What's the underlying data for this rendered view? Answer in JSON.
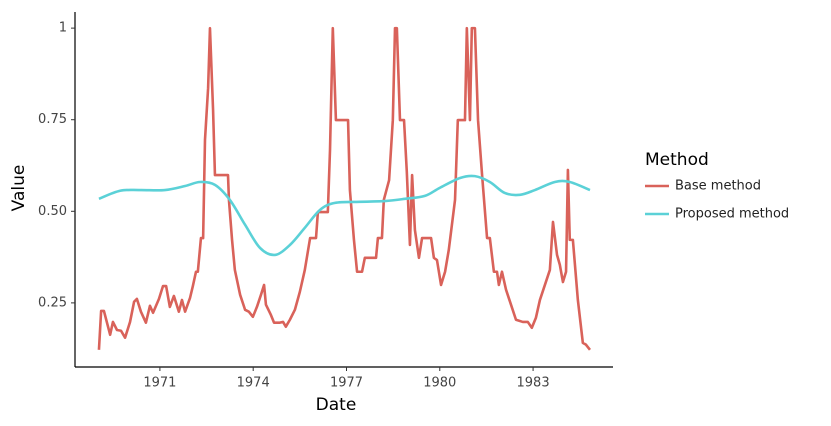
{
  "chart_data": {
    "type": "line",
    "xlabel": "Date",
    "ylabel": "Value",
    "legend_title": "Method",
    "legend_position": "right",
    "xlim": [
      1968.27,
      1985.57
    ],
    "ylim": [
      0.075,
      1.044
    ],
    "xticks": [
      1971,
      1974,
      1977,
      1980,
      1983
    ],
    "yticks": [
      0.25,
      {
        "value": 0.5,
        "label": "0.50"
      },
      0.75,
      1
    ],
    "grid": false,
    "series": [
      {
        "name": "Base method",
        "color": "#d9625a",
        "smooth": false,
        "x": [
          1969.04,
          1969.11,
          1969.2,
          1969.4,
          1969.49,
          1969.62,
          1969.75,
          1969.88,
          1970.04,
          1970.17,
          1970.26,
          1970.39,
          1970.55,
          1970.68,
          1970.78,
          1970.97,
          1971.1,
          1971.2,
          1971.32,
          1971.45,
          1971.61,
          1971.71,
          1971.81,
          1971.97,
          1972.06,
          1972.16,
          1972.22,
          1972.32,
          1972.39,
          1972.45,
          1972.55,
          1972.61,
          1972.71,
          1972.77,
          1972.93,
          1973.19,
          1973.22,
          1973.32,
          1973.41,
          1973.58,
          1973.74,
          1973.86,
          1973.99,
          1974.12,
          1974.25,
          1974.35,
          1974.41,
          1974.57,
          1974.67,
          1974.86,
          1974.96,
          1975.05,
          1975.18,
          1975.34,
          1975.5,
          1975.66,
          1975.83,
          1976.02,
          1976.08,
          1976.4,
          1976.47,
          1976.56,
          1976.66,
          1976.79,
          1977.05,
          1977.11,
          1977.24,
          1977.34,
          1977.5,
          1977.59,
          1977.95,
          1978.01,
          1978.14,
          1978.2,
          1978.37,
          1978.49,
          1978.56,
          1978.62,
          1978.72,
          1978.85,
          1978.94,
          1979.04,
          1979.11,
          1979.2,
          1979.33,
          1979.43,
          1979.72,
          1979.81,
          1979.91,
          1980.04,
          1980.17,
          1980.29,
          1980.49,
          1980.58,
          1980.81,
          1980.87,
          1980.97,
          1981.03,
          1981.13,
          1981.23,
          1981.36,
          1981.52,
          1981.61,
          1981.74,
          1981.84,
          1981.9,
          1982.0,
          1982.13,
          1982.29,
          1982.45,
          1982.67,
          1982.83,
          1982.96,
          1983.09,
          1983.22,
          1983.38,
          1983.54,
          1983.64,
          1983.77,
          1983.86,
          1983.96,
          1984.06,
          1984.12,
          1984.18,
          1984.28,
          1984.44,
          1984.6,
          1984.7,
          1984.83
        ],
        "values": [
          0.122,
          0.228,
          0.228,
          0.163,
          0.198,
          0.176,
          0.174,
          0.155,
          0.198,
          0.253,
          0.261,
          0.226,
          0.196,
          0.242,
          0.223,
          0.261,
          0.296,
          0.296,
          0.239,
          0.269,
          0.226,
          0.258,
          0.226,
          0.264,
          0.296,
          0.335,
          0.335,
          0.427,
          0.427,
          0.695,
          0.836,
          1,
          0.776,
          0.599,
          0.599,
          0.599,
          0.531,
          0.422,
          0.34,
          0.272,
          0.231,
          0.226,
          0.212,
          0.239,
          0.272,
          0.299,
          0.245,
          0.217,
          0.196,
          0.196,
          0.198,
          0.185,
          0.204,
          0.231,
          0.28,
          0.34,
          0.427,
          0.427,
          0.498,
          0.498,
          0.667,
          1,
          0.749,
          0.749,
          0.749,
          0.558,
          0.422,
          0.335,
          0.335,
          0.373,
          0.373,
          0.427,
          0.427,
          0.531,
          0.585,
          0.749,
          1,
          1,
          0.749,
          0.749,
          0.607,
          0.408,
          0.599,
          0.449,
          0.373,
          0.427,
          0.427,
          0.373,
          0.367,
          0.299,
          0.335,
          0.395,
          0.531,
          0.749,
          0.749,
          1,
          0.749,
          1,
          1,
          0.749,
          0.599,
          0.427,
          0.427,
          0.335,
          0.335,
          0.299,
          0.335,
          0.286,
          0.245,
          0.204,
          0.198,
          0.198,
          0.182,
          0.209,
          0.258,
          0.299,
          0.34,
          0.471,
          0.381,
          0.354,
          0.307,
          0.335,
          0.613,
          0.422,
          0.422,
          0.258,
          0.141,
          0.136,
          0.122
        ]
      },
      {
        "name": "Proposed method",
        "color": "#5bd1d7",
        "smooth": true,
        "x": [
          1969.04,
          1969.72,
          1970.36,
          1971.16,
          1971.81,
          1972.29,
          1972.77,
          1973.25,
          1973.74,
          1974.22,
          1974.7,
          1975.18,
          1975.66,
          1976.15,
          1976.63,
          1977.43,
          1978.24,
          1978.88,
          1979.52,
          1980.0,
          1980.65,
          1981.13,
          1981.61,
          1982.09,
          1982.58,
          1983.06,
          1983.7,
          1984.18,
          1984.83
        ],
        "values": [
          0.534,
          0.556,
          0.558,
          0.558,
          0.569,
          0.58,
          0.572,
          0.531,
          0.463,
          0.4,
          0.381,
          0.408,
          0.455,
          0.504,
          0.523,
          0.526,
          0.528,
          0.534,
          0.542,
          0.564,
          0.591,
          0.596,
          0.58,
          0.55,
          0.545,
          0.558,
          0.58,
          0.58,
          0.558
        ]
      }
    ]
  }
}
